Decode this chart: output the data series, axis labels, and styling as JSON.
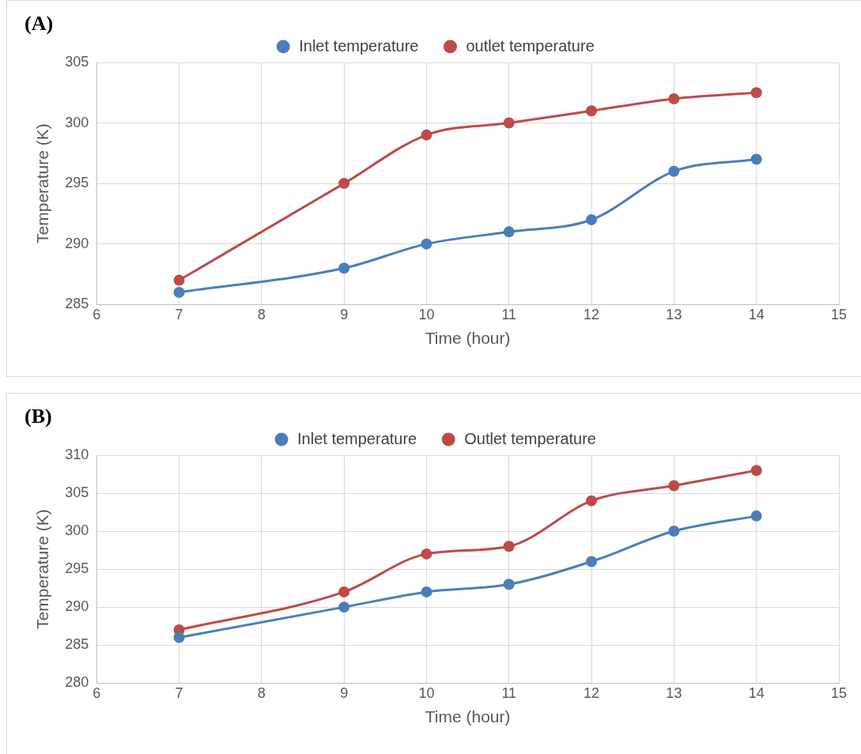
{
  "chart_data": [
    {
      "type": "line",
      "title": "(A)",
      "xlabel": "Time (hour)",
      "ylabel": "Temperature (K)",
      "x": [
        7,
        9,
        10,
        11,
        12,
        13,
        14
      ],
      "series": [
        {
          "name": "Inlet temperature",
          "color": "#4a7ebb",
          "values": [
            286,
            288,
            290,
            291,
            292,
            296,
            297
          ]
        },
        {
          "name": "outlet temperature",
          "color": "#be4b48",
          "values": [
            287,
            295,
            299,
            300,
            301,
            302,
            302.5
          ]
        }
      ],
      "xlim": [
        6,
        15
      ],
      "xticks": [
        6,
        7,
        8,
        9,
        10,
        11,
        12,
        13,
        14,
        15
      ],
      "ylim": [
        285,
        305
      ],
      "yticks": [
        285,
        290,
        295,
        300,
        305
      ],
      "grid": true,
      "legend": "top",
      "marker": "circle",
      "line_style": "solid"
    },
    {
      "type": "line",
      "title": "(B)",
      "xlabel": "Time (hour)",
      "ylabel": "Temperature (K)",
      "x": [
        7,
        9,
        10,
        11,
        12,
        13,
        14
      ],
      "series": [
        {
          "name": "Inlet temperature",
          "color": "#4a7ebb",
          "values": [
            286,
            290,
            292,
            293,
            296,
            300,
            302
          ]
        },
        {
          "name": "Outlet temperature",
          "color": "#be4b48",
          "values": [
            287,
            292,
            297,
            298,
            304,
            306,
            308
          ]
        }
      ],
      "xlim": [
        6,
        15
      ],
      "xticks": [
        6,
        7,
        8,
        9,
        10,
        11,
        12,
        13,
        14,
        15
      ],
      "ylim": [
        280,
        310
      ],
      "yticks": [
        280,
        285,
        290,
        295,
        300,
        305,
        310
      ],
      "grid": true,
      "legend": "top",
      "marker": "circle",
      "line_style": "solid"
    }
  ]
}
